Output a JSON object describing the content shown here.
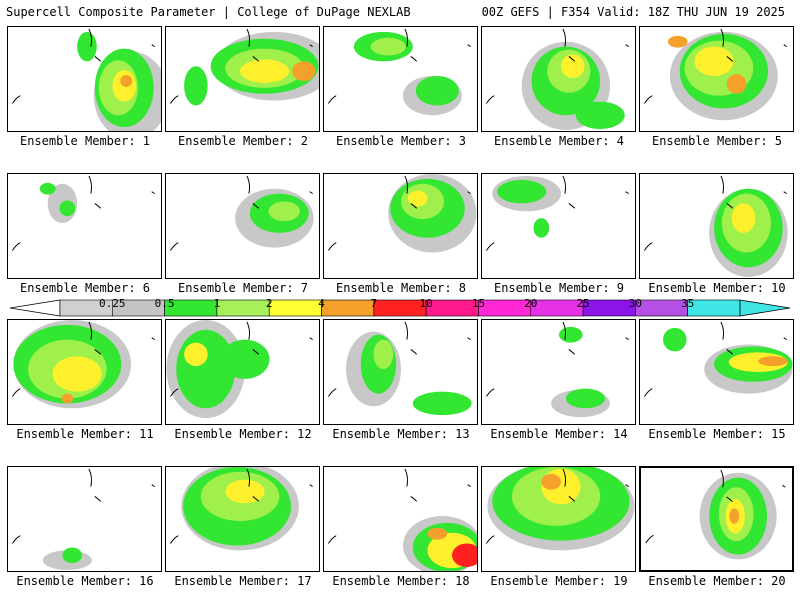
{
  "header": {
    "left": "Supercell Composite Parameter | College of DuPage NEXLAB",
    "right": "00Z GEFS | F354 Valid: 18Z THU JUN 19 2025"
  },
  "caption_prefix": "Ensemble Member:",
  "members": [
    1,
    2,
    3,
    4,
    5,
    6,
    7,
    8,
    9,
    10,
    11,
    12,
    13,
    14,
    15,
    16,
    17,
    18,
    19,
    20
  ],
  "selected_member": 20,
  "legend": {
    "labels": [
      "0.25",
      "0.5",
      "1",
      "2",
      "4",
      "7",
      "10",
      "15",
      "20",
      "25",
      "30",
      "35"
    ],
    "colors": [
      "#d0d0d0",
      "#c4c4c4",
      "#32e632",
      "#a8f05a",
      "#ffff32",
      "#f5a02a",
      "#ff2020",
      "#ff1a8c",
      "#ff28d2",
      "#e632e6",
      "#8c14e6",
      "#b450e6",
      "#40e6e6"
    ]
  },
  "fill_colors": {
    "gray": "#c8c8c8",
    "green": "#32e632",
    "lightgreen": "#a0f04c",
    "yellow": "#fff02d",
    "orange": "#f5a02a",
    "red": "#ff2020"
  }
}
